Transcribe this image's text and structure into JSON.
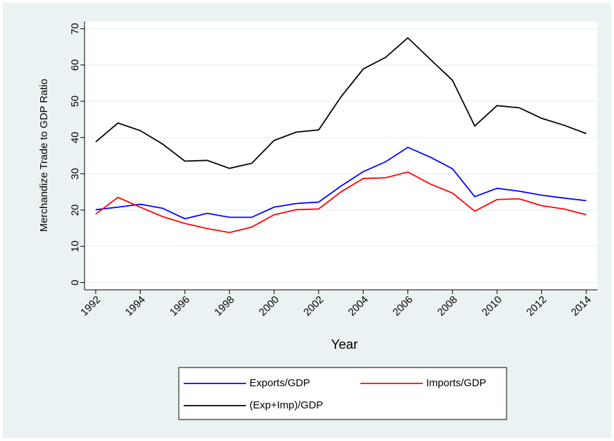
{
  "chart_data": {
    "type": "line",
    "xlabel": "Year",
    "ylabel": "Merchandize Trade to GDP Ratio",
    "x": [
      1992,
      1993,
      1994,
      1995,
      1996,
      1997,
      1998,
      1999,
      2000,
      2001,
      2002,
      2003,
      2004,
      2005,
      2006,
      2007,
      2008,
      2009,
      2010,
      2011,
      2012,
      2013,
      2014
    ],
    "series": [
      {
        "name": "Exports/GDP",
        "color": "#0000ff",
        "values": [
          20.1,
          20.8,
          21.6,
          20.5,
          17.6,
          19.1,
          18.0,
          18.0,
          20.8,
          21.8,
          22.2,
          26.6,
          30.6,
          33.3,
          37.3,
          34.6,
          31.4,
          23.7,
          26.0,
          25.2,
          24.1,
          23.3,
          22.6
        ]
      },
      {
        "name": "Imports/GDP",
        "color": "#ff0000",
        "values": [
          18.9,
          23.5,
          20.8,
          18.2,
          16.3,
          14.9,
          13.8,
          15.3,
          18.7,
          20.1,
          20.3,
          25.0,
          28.7,
          28.9,
          30.5,
          27.2,
          24.7,
          19.7,
          22.9,
          23.1,
          21.2,
          20.3,
          18.7
        ]
      },
      {
        "name": "(Exp+Imp)/GDP",
        "color": "#000000",
        "values": [
          38.8,
          44.0,
          41.9,
          38.2,
          33.5,
          33.7,
          31.5,
          32.9,
          39.2,
          41.5,
          42.1,
          51.2,
          58.9,
          62.1,
          67.5,
          61.6,
          55.8,
          43.2,
          48.8,
          48.2,
          45.3,
          43.4,
          41.1
        ]
      }
    ],
    "xlim": [
      1991.5,
      2014.5
    ],
    "xticks": [
      1992,
      1994,
      1996,
      1998,
      2000,
      2002,
      2004,
      2006,
      2008,
      2010,
      2012,
      2014
    ],
    "ylim": [
      -2,
      72
    ],
    "yticks": [
      0,
      10,
      20,
      30,
      40,
      50,
      60,
      70
    ],
    "grid": true,
    "legend": "bottom"
  }
}
